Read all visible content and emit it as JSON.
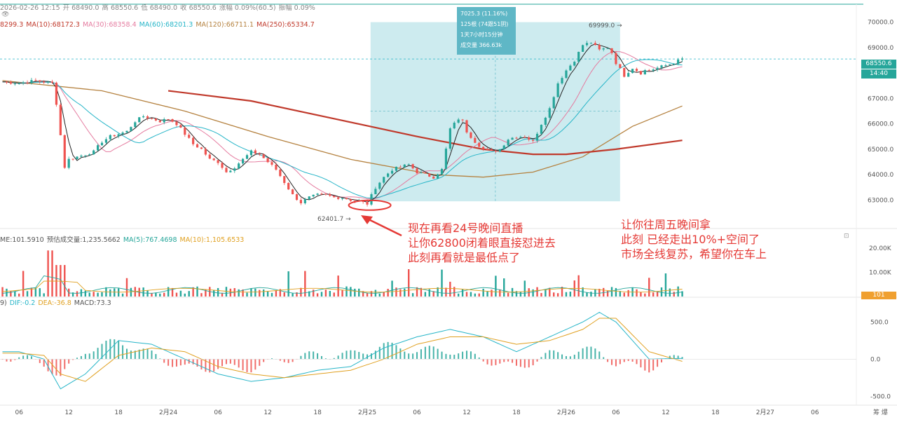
{
  "header": {
    "row1": [
      "2026-02-26 12:15",
      "开 68490.0",
      "高 68550.6",
      "低 68490.0",
      "收 68550.6",
      "涨幅 0.09%(60.5)",
      "振幅 0.09%"
    ],
    "row2": [
      "8299.3",
      "MA(10):68172.3",
      "MA(30):68358.4",
      "MA(60):68201.3",
      "MA(120):66711.1",
      "MA(250):65334.7"
    ],
    "row3_icon": "eye-icon"
  },
  "colors": {
    "up": "#26a69a",
    "down": "#ef5350",
    "box": "#5fb7c6",
    "ma250": "#c0392b",
    "ma120": "#b58240",
    "annotation": "#e53935"
  },
  "info_box": [
    "7025.3 (11.16%)",
    "125根 (74跟51阴)",
    "1天7小时15分钟",
    "成交量 366.63k"
  ],
  "markers": {
    "high": "69999.0",
    "low": "62401.7"
  },
  "current_price": {
    "value": "68550.6",
    "time": "14:40",
    "volume_badge": "101"
  },
  "volume_header": [
    "ME:101.5910",
    "预估成交量:1,235.5662",
    "MA(5):767.4698",
    "MA(10):1,105.6533"
  ],
  "macd_header": [
    "9)",
    "DIF:-0.2",
    "DEA:-36.8",
    "MACD:73.3"
  ],
  "annotations": {
    "left": [
      "现在再看24号晚间直播",
      "让你62800闭着眼直接怼进去",
      "此刻再看就是最低点了"
    ],
    "right": [
      "让你往周五晚间拿",
      "此刻 已经走出10%+空间了",
      "市场全线复苏，希望你在车上"
    ]
  },
  "x_ticks": [
    "06",
    "12",
    "18",
    "2月24",
    "06",
    "12",
    "18",
    "2月25",
    "06",
    "12",
    "18",
    "2月26",
    "06",
    "12",
    "18",
    "2月27",
    "06"
  ],
  "axis_extra": "筹 爆",
  "chart_data": [
    {
      "type": "line",
      "title": "",
      "ylabel": "",
      "yticks": [
        63000,
        64000,
        65000,
        66000,
        67000,
        68000,
        69000,
        70000
      ],
      "ytick_labels": [
        "63000.0",
        "64000.0",
        "65000.0",
        "66000.0",
        "67000.0",
        "68000.0",
        "69000.0",
        "70000.0"
      ],
      "ylim": [
        62100,
        70650
      ],
      "x_labels": [
        "06",
        "12",
        "18",
        "2月24",
        "06",
        "12",
        "18",
        "2月25",
        "06",
        "12",
        "18",
        "2月26",
        "06",
        "12",
        "18",
        "2月27",
        "06"
      ],
      "x_hours": [
        0,
        6,
        12,
        18,
        24,
        30,
        36,
        42,
        48,
        54,
        60,
        66,
        72,
        78,
        84,
        90,
        96
      ],
      "xlim": [
        -2.3,
        101
      ],
      "series": [
        {
          "name": "",
          "x": [
            -2,
            0,
            2,
            4,
            4.5,
            5.5,
            6,
            7,
            8,
            9,
            10,
            11,
            12,
            13,
            14,
            15,
            16,
            17,
            18,
            19,
            20,
            21,
            22,
            23,
            24,
            25,
            26,
            27,
            28,
            29,
            30,
            31,
            32,
            33,
            34,
            35,
            36,
            37,
            38,
            39,
            40,
            41,
            42,
            43,
            44,
            45,
            46,
            47,
            48,
            49,
            50,
            51,
            52,
            53,
            53.5,
            54,
            55,
            56,
            57,
            58,
            59,
            60,
            61,
            62,
            63,
            64,
            65,
            66,
            67,
            68,
            69,
            70,
            71,
            71.5,
            72,
            73,
            74,
            75,
            75.5,
            76,
            77,
            78,
            79,
            80
          ],
          "values": [
            67650,
            67600,
            67700,
            67600,
            66800,
            64300,
            64600,
            64700,
            64800,
            64900,
            65300,
            65500,
            65600,
            65700,
            66100,
            66300,
            66200,
            66100,
            66200,
            66000,
            65600,
            65200,
            65000,
            64600,
            64500,
            64100,
            64300,
            64600,
            64900,
            64800,
            64500,
            64200,
            63700,
            63200,
            62900,
            63100,
            63200,
            63200,
            63100,
            63100,
            63000,
            62950,
            62850,
            63500,
            63900,
            64200,
            64300,
            64400,
            64100,
            64000,
            63900,
            64200,
            65800,
            66200,
            66100,
            65700,
            65300,
            65000,
            64900,
            65000,
            65400,
            65500,
            65500,
            65300,
            66000,
            66600,
            67600,
            68100,
            68500,
            69100,
            69200,
            68900,
            69000,
            68800,
            68400,
            67900,
            68200,
            68000,
            68100,
            68100,
            68200,
            68300,
            68400,
            68550
          ]
        }
      ]
    },
    {
      "type": "bar",
      "title": "",
      "yticks": [
        10000,
        20000
      ],
      "ytick_labels": [
        "10.00K",
        "20.00K"
      ],
      "ylim": [
        0,
        24000
      ]
    },
    {
      "type": "bar",
      "title": "",
      "yticks": [
        -500,
        0,
        500
      ],
      "ytick_labels": [
        "-500.0",
        "0.0",
        "500.0"
      ],
      "ylim": [
        -620,
        720
      ],
      "series": [
        {
          "name": "DIF",
          "x": [
            0,
            3,
            5,
            8,
            12,
            16,
            20,
            24,
            28,
            32,
            36,
            40,
            44,
            48,
            52,
            56,
            60,
            64,
            68,
            70,
            72,
            76,
            80
          ],
          "values": [
            100,
            0,
            -400,
            -200,
            250,
            200,
            0,
            -200,
            -300,
            -250,
            -150,
            -100,
            150,
            300,
            400,
            300,
            100,
            300,
            500,
            630,
            500,
            0,
            10
          ]
        },
        {
          "name": "DEA",
          "x": [
            0,
            3,
            5,
            8,
            12,
            16,
            20,
            24,
            28,
            32,
            36,
            40,
            44,
            48,
            52,
            56,
            60,
            64,
            68,
            70,
            72,
            76,
            80
          ],
          "values": [
            80,
            50,
            -200,
            -300,
            50,
            150,
            100,
            -100,
            -200,
            -250,
            -200,
            -150,
            0,
            200,
            300,
            300,
            200,
            250,
            400,
            550,
            550,
            100,
            -30
          ]
        }
      ]
    }
  ]
}
